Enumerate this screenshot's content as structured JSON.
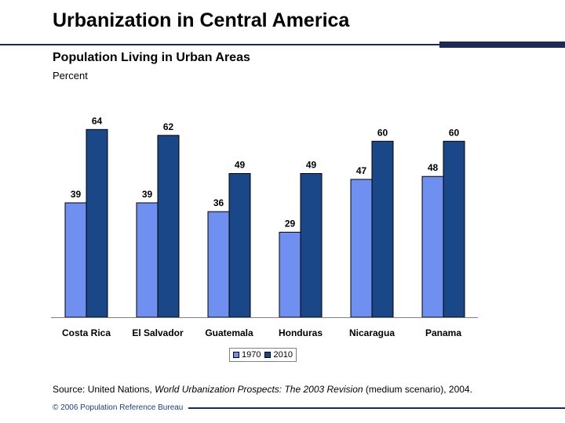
{
  "header": {
    "title": "Urbanization in Central America",
    "subtitle": "Population Living in Urban Areas",
    "unit_label": "Percent"
  },
  "colors": {
    "series_1970": "#6f90f0",
    "series_2010": "#1a4787",
    "rule": "#1c2a5a"
  },
  "chart_data": {
    "type": "bar",
    "title": "Population Living in Urban Areas",
    "ylabel": "Percent",
    "xlabel": "",
    "ylim": [
      0,
      70
    ],
    "grid": false,
    "legend_position": "bottom-center",
    "categories": [
      "Costa Rica",
      "El Salvador",
      "Guatemala",
      "Honduras",
      "Nicaragua",
      "Panama"
    ],
    "series": [
      {
        "name": "1970",
        "values": [
          39,
          39,
          36,
          29,
          47,
          48
        ]
      },
      {
        "name": "2010",
        "values": [
          64,
          62,
          49,
          49,
          60,
          60
        ]
      }
    ]
  },
  "source": {
    "prefix": "Source: United Nations, ",
    "title_italic": "World Urbanization Prospects: The 2003 Revision",
    "suffix": " (medium scenario), 2004."
  },
  "footer": {
    "copyright": "© 2006 Population Reference Bureau"
  }
}
